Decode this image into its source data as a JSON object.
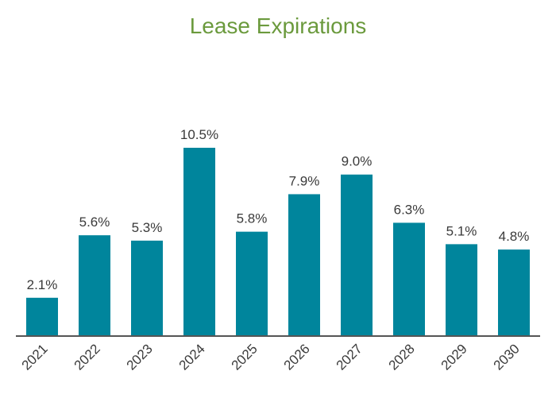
{
  "colors": {
    "title": "#6b9a3d",
    "bar": "#00859c",
    "axis": "#555555",
    "text": "#3a3a3a"
  },
  "chart_data": {
    "type": "bar",
    "title": "Lease Expirations",
    "xlabel": "",
    "ylabel": "",
    "grid": false,
    "legend": "none",
    "categories": [
      "2021",
      "2022",
      "2023",
      "2024",
      "2025",
      "2026",
      "2027",
      "2028",
      "2029",
      "2030"
    ],
    "values": [
      2.1,
      5.6,
      5.3,
      10.5,
      5.8,
      7.9,
      9.0,
      6.3,
      5.1,
      4.8
    ],
    "value_labels": [
      "2.1%",
      "5.6%",
      "5.3%",
      "10.5%",
      "5.8%",
      "7.9%",
      "9.0%",
      "6.3%",
      "5.1%",
      "4.8%"
    ],
    "ylim": [
      0,
      10.5
    ]
  }
}
